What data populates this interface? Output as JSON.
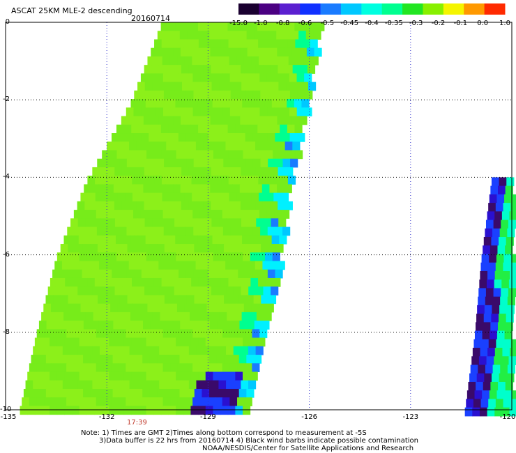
{
  "title": "ASCAT 25KM MLE-2 descending",
  "date": "20160714",
  "colorbar": {
    "labels": [
      "-15.0",
      "-1.0",
      "-0.8",
      "-0.6",
      "-0.5",
      "-0.45",
      "-0.4",
      "-0.35",
      "-0.3",
      "-0.2",
      "-0.1",
      "0.0",
      "1.0"
    ],
    "colors": [
      "#1a0030",
      "#4b0082",
      "#5b1fd0",
      "#1030ff",
      "#1a7bff",
      "#00c8ff",
      "#00ffe0",
      "#00ff90",
      "#22e622",
      "#88f000",
      "#f5f500",
      "#ff9900",
      "#ff2a00"
    ]
  },
  "y_axis": {
    "labels": [
      "0",
      "-2",
      "-4",
      "-6",
      "-8",
      "-10"
    ]
  },
  "x_axis": {
    "labels": [
      "-135",
      "-132",
      "-129",
      "-126",
      "-123",
      "-120"
    ]
  },
  "pass_time": "17:39",
  "notes": {
    "line1": "Note: 1) Times are GMT 2)Times along bottom correspond to measurement at -5S",
    "line2": "3)Data buffer is 22 hrs from 20160714 4) Black wind barbs indicate possible contamination",
    "line3": "NOAA/NESDIS/Center for Satellite Applications and Research"
  },
  "chart_data": {
    "type": "heatmap",
    "title": "ASCAT 25KM MLE-2 descending",
    "subtitle": "20160714",
    "xlim": [
      -135,
      -120
    ],
    "ylim": [
      -10,
      0
    ],
    "grid": true,
    "colorbar_ticks": [
      -15.0,
      -1.0,
      -0.8,
      -0.6,
      -0.5,
      -0.45,
      -0.4,
      -0.35,
      -0.3,
      -0.2,
      -0.1,
      0.0,
      1.0
    ],
    "swaths": [
      {
        "name": "",
        "west_edge": [
          [
            -130.4,
            0
          ],
          [
            -131.3,
            -2
          ],
          [
            -132.6,
            -4
          ],
          [
            -133.5,
            -6
          ],
          [
            -134.1,
            -8
          ],
          [
            -134.6,
            -10
          ]
        ],
        "east_edge": [
          [
            -125.7,
            0
          ],
          [
            -126.1,
            -2
          ],
          [
            -126.6,
            -4
          ],
          [
            -126.9,
            -6
          ],
          [
            -127.3,
            -8
          ],
          [
            -127.9,
            -10
          ]
        ]
      },
      {
        "name": "",
        "west_edge": [
          [
            -120.6,
            -4
          ],
          [
            -120.9,
            -6
          ],
          [
            -121.1,
            -8
          ],
          [
            -121.4,
            -10
          ]
        ],
        "east_edge": [
          [
            -120.0,
            -4
          ],
          [
            -120.0,
            -10
          ]
        ]
      }
    ]
  }
}
